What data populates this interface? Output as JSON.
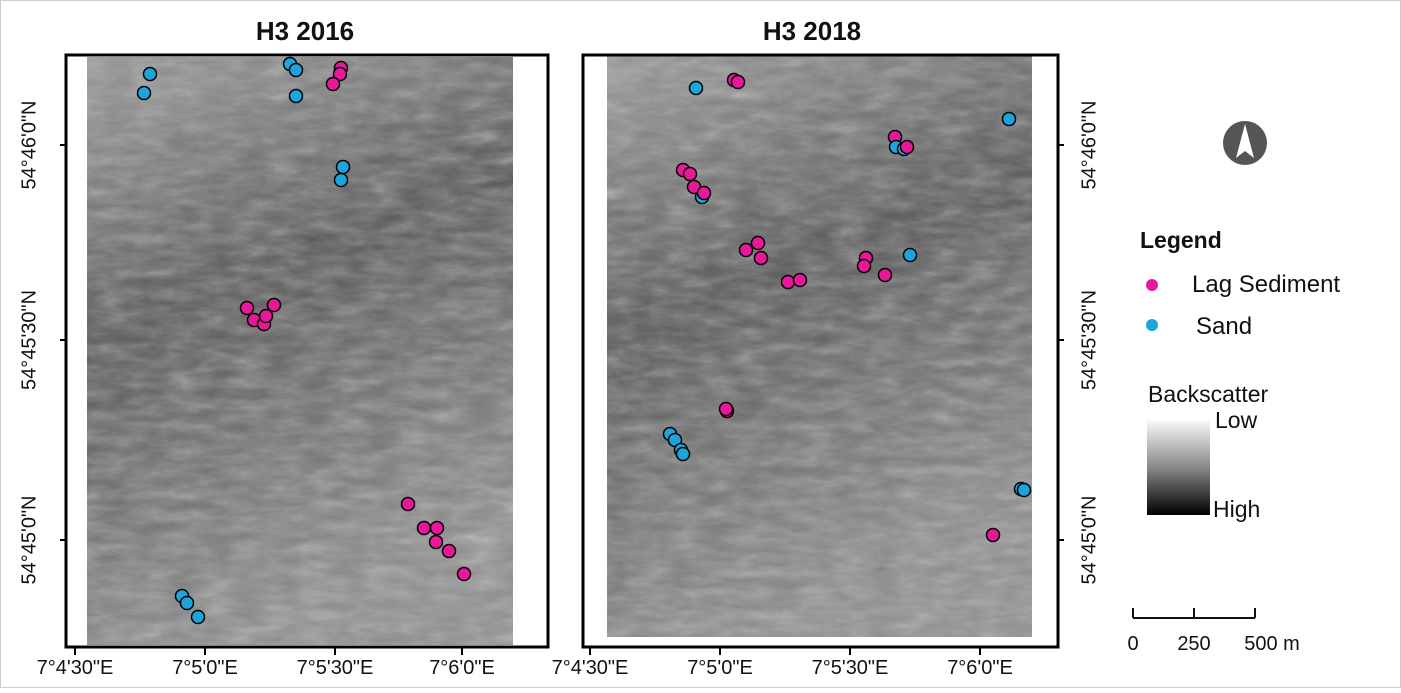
{
  "panels": [
    {
      "title": "H3 2016",
      "x_labels": [
        "7°4'30\"E",
        "7°5'0\"E",
        "7°5'30\"E",
        "7°6'0\"E"
      ],
      "y_labels": [
        "54°46'0\"N",
        "54°45'30\"N",
        "54°45'0\"N"
      ]
    },
    {
      "title": "H3 2018",
      "x_labels": [
        "7°4'30\"E",
        "7°5'0\"E",
        "7°5'30\"E",
        "7°6'0\"E"
      ],
      "y_labels": [
        "54°46'0\"N",
        "54°45'30\"N",
        "54°45'0\"N"
      ]
    }
  ],
  "legend": {
    "title": "Legend",
    "items": [
      {
        "label": "Lag Sediment",
        "color": "#e8189a"
      },
      {
        "label": "Sand",
        "color": "#1ea4dc"
      }
    ],
    "backscatter": {
      "title": "Backscatter",
      "low": "Low",
      "high": "High"
    }
  },
  "scale_bar": {
    "labels": [
      "0",
      "250",
      "500 m"
    ]
  }
}
